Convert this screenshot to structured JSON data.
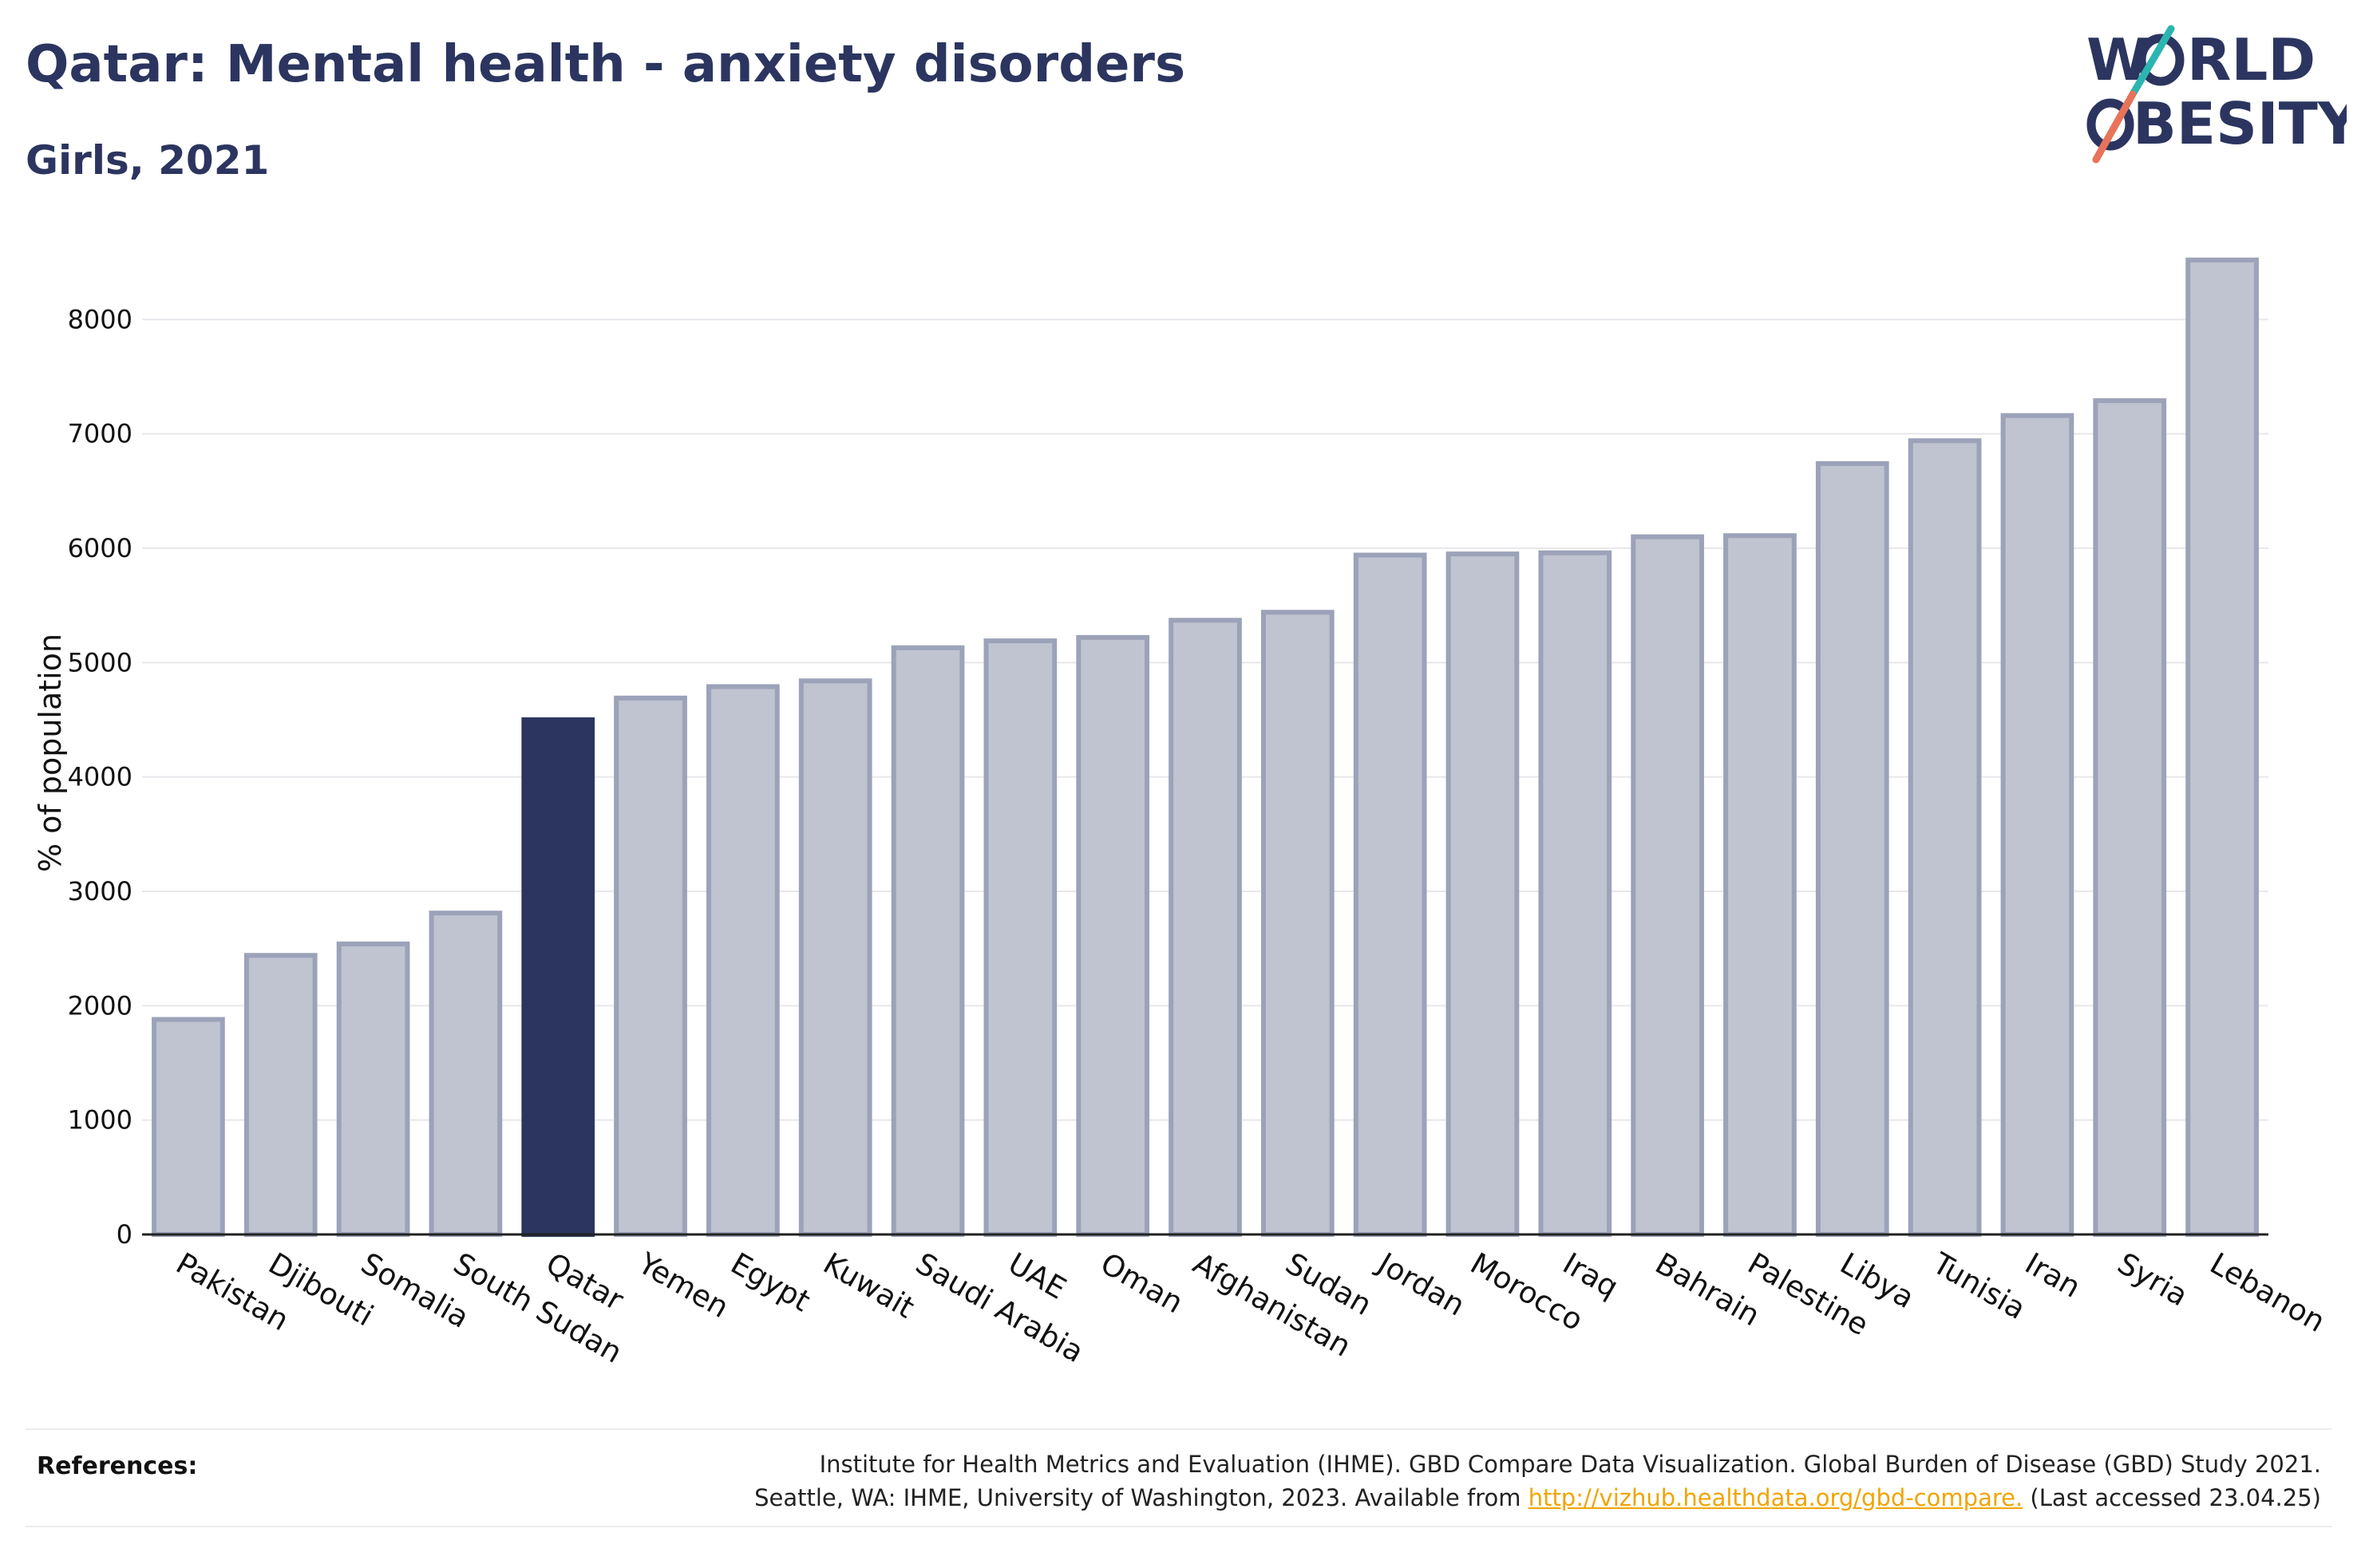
{
  "header": {
    "title": "Qatar: Mental health - anxiety disorders",
    "subtitle": "Girls, 2021"
  },
  "logo": {
    "line1": "W",
    "line1_rest": "RLD",
    "line2": "BESITY",
    "slash_color_top": "#2bb5b0",
    "slash_color_bottom": "#e8735a"
  },
  "colors": {
    "highlight_bar": "#2b355f",
    "other_bar_fill": "#c0c3d0",
    "other_bar_stroke": "#9ca2b8",
    "grid": "#e8e8ec"
  },
  "chart_data": {
    "type": "bar",
    "ylabel": "% of population",
    "ylim": [
      0,
      8700
    ],
    "yticks": [
      0,
      1000,
      2000,
      3000,
      4000,
      5000,
      6000,
      7000,
      8000
    ],
    "grid": true,
    "highlight": "Qatar",
    "categories": [
      "Pakistan",
      "Djibouti",
      "Somalia",
      "South Sudan",
      "Qatar",
      "Yemen",
      "Egypt",
      "Kuwait",
      "Saudi Arabia",
      "UAE",
      "Oman",
      "Afghanistan",
      "Sudan",
      "Jordan",
      "Morocco",
      "Iraq",
      "Bahrain",
      "Palestine",
      "Libya",
      "Tunisia",
      "Iran",
      "Syria",
      "Lebanon"
    ],
    "values": [
      1880,
      2440,
      2540,
      2810,
      4500,
      4690,
      4790,
      4840,
      5130,
      5190,
      5220,
      5370,
      5440,
      5940,
      5950,
      5960,
      6100,
      6110,
      6740,
      6940,
      7160,
      7290,
      8520
    ]
  },
  "references": {
    "label": "References:",
    "line1": "Institute for Health Metrics and Evaluation (IHME). GBD Compare Data Visualization. Global Burden of Disease (GBD) Study 2021.",
    "line2_prefix": "Seattle, WA: IHME, University of Washington, 2023. Available from",
    "link_text": "http://vizhub.healthdata.org/gbd-compare.",
    "line2_suffix": "(Last accessed 23.04.25)"
  }
}
